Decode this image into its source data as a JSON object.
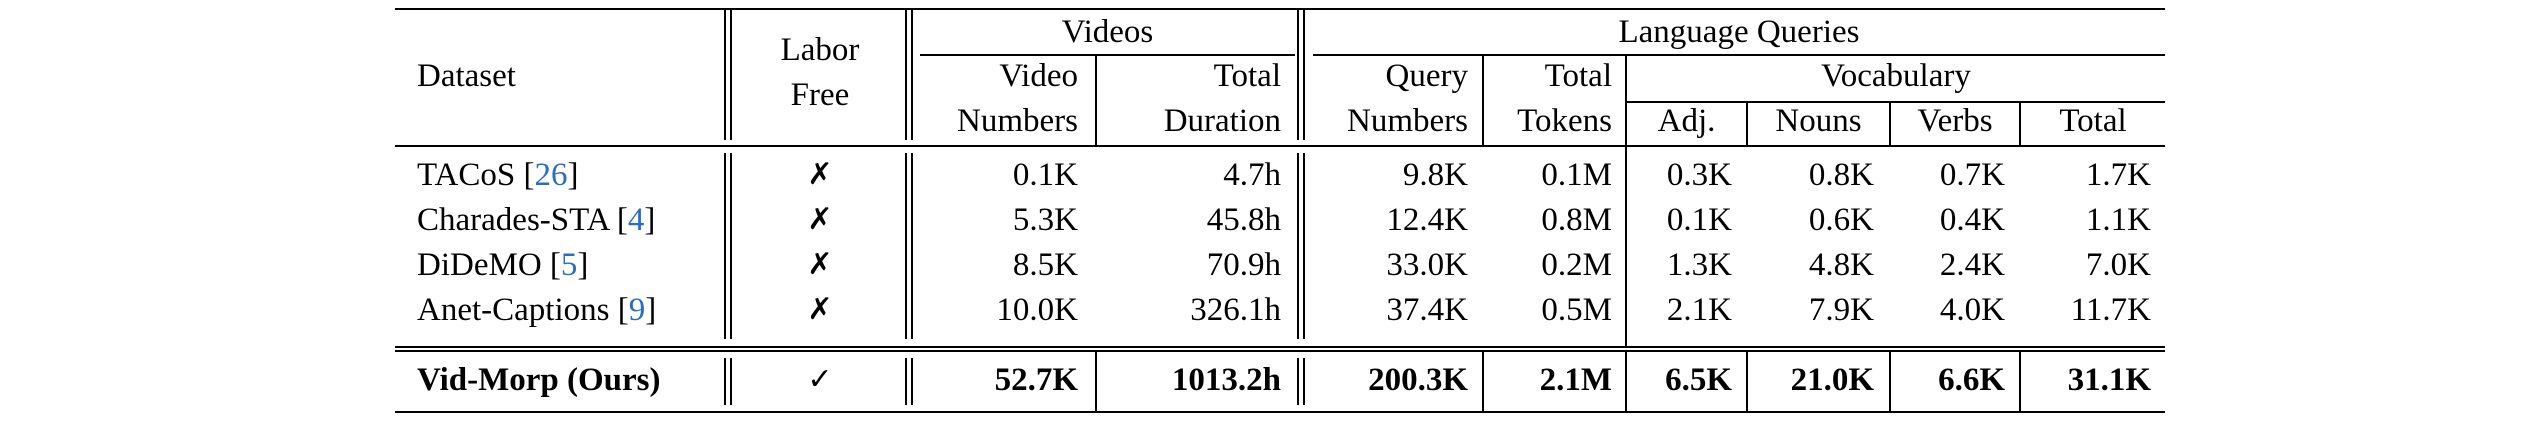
{
  "header": {
    "dataset": "Dataset",
    "labor_free_1": "Labor",
    "labor_free_2": "Free",
    "videos_group": "Videos",
    "video_numbers_1": "Video",
    "video_numbers_2": "Numbers",
    "total_duration_1": "Total",
    "total_duration_2": "Duration",
    "lq_group": "Language Queries",
    "query_numbers_1": "Query",
    "query_numbers_2": "Numbers",
    "total_tokens_1": "Total",
    "total_tokens_2": "Tokens",
    "vocab_group": "Vocabulary",
    "adj": "Adj.",
    "nouns": "Nouns",
    "verbs": "Verbs",
    "total": "Total"
  },
  "rows": [
    {
      "name": "TACoS",
      "ref": "26",
      "labor_free": "✗",
      "video_numbers": "0.1K",
      "total_duration": "4.7h",
      "query_numbers": "9.8K",
      "total_tokens": "0.1M",
      "adj": "0.3K",
      "nouns": "0.8K",
      "verbs": "0.7K",
      "total": "1.7K"
    },
    {
      "name": "Charades-STA",
      "ref": "4",
      "labor_free": "✗",
      "video_numbers": "5.3K",
      "total_duration": "45.8h",
      "query_numbers": "12.4K",
      "total_tokens": "0.8M",
      "adj": "0.1K",
      "nouns": "0.6K",
      "verbs": "0.4K",
      "total": "1.1K"
    },
    {
      "name": "DiDeMO",
      "ref": "5",
      "labor_free": "✗",
      "video_numbers": "8.5K",
      "total_duration": "70.9h",
      "query_numbers": "33.0K",
      "total_tokens": "0.2M",
      "adj": "1.3K",
      "nouns": "4.8K",
      "verbs": "2.4K",
      "total": "7.0K"
    },
    {
      "name": "Anet-Captions",
      "ref": "9",
      "labor_free": "✗",
      "video_numbers": "10.0K",
      "total_duration": "326.1h",
      "query_numbers": "37.4K",
      "total_tokens": "0.5M",
      "adj": "2.1K",
      "nouns": "7.9K",
      "verbs": "4.0K",
      "total": "11.7K"
    }
  ],
  "ours": {
    "name": "Vid-Morp (Ours)",
    "labor_free": "✓",
    "video_numbers": "52.7K",
    "total_duration": "1013.2h",
    "query_numbers": "200.3K",
    "total_tokens": "2.1M",
    "adj": "6.5K",
    "nouns": "21.0K",
    "verbs": "6.6K",
    "total": "31.1K"
  },
  "colors": {
    "citation": "#2b6cc4",
    "text": "#000000"
  }
}
